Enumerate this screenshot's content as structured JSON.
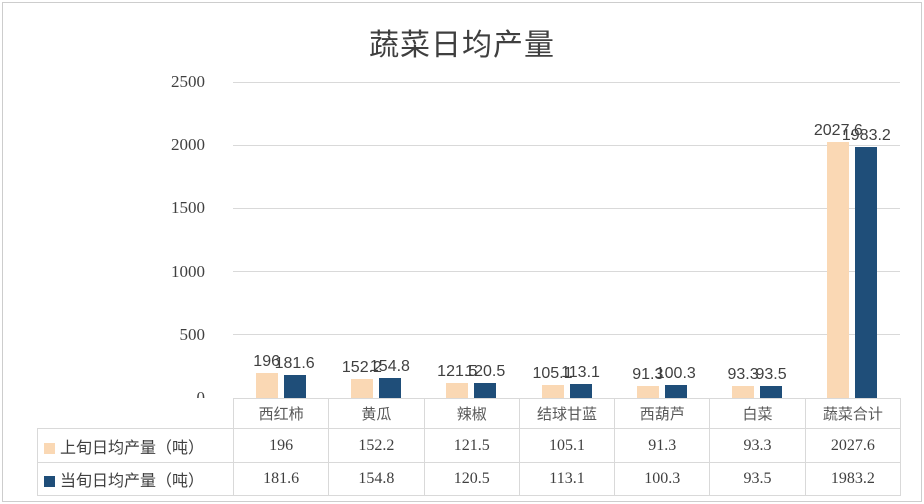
{
  "chart_data": {
    "type": "bar",
    "title": "蔬菜日均产量",
    "categories": [
      "西红柿",
      "黄瓜",
      "辣椒",
      "结球甘蓝",
      "西葫芦",
      "白菜",
      "蔬菜合计"
    ],
    "series": [
      {
        "name": "上旬日均产量（吨）",
        "color": "#FAD8B4",
        "values": [
          196,
          152.2,
          121.5,
          105.1,
          91.3,
          93.3,
          2027.6
        ]
      },
      {
        "name": "当旬日均产量（吨）",
        "color": "#1F4E79",
        "values": [
          181.6,
          154.8,
          120.5,
          113.1,
          100.3,
          93.5,
          1983.2
        ]
      }
    ],
    "xlabel": "",
    "ylabel": "",
    "ylim": [
      0,
      2500
    ],
    "yticks": [
      0,
      500,
      1000,
      1500,
      2000,
      2500
    ],
    "grid": true,
    "data_labels": true,
    "legend_position": "data-table-left",
    "data_table_shown": true
  }
}
